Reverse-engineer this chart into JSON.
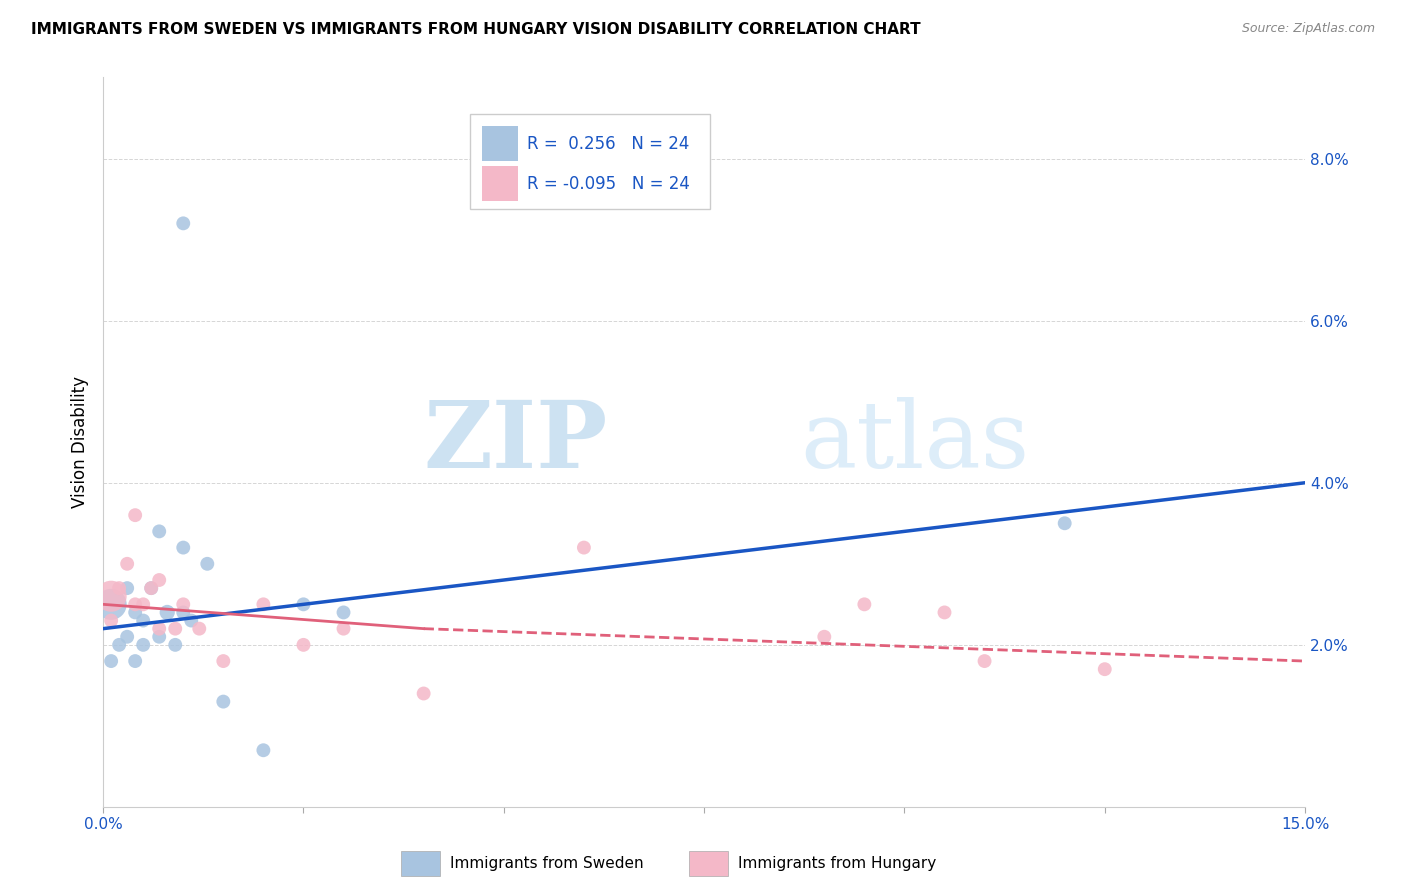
{
  "title": "IMMIGRANTS FROM SWEDEN VS IMMIGRANTS FROM HUNGARY VISION DISABILITY CORRELATION CHART",
  "source": "Source: ZipAtlas.com",
  "ylabel": "Vision Disability",
  "xlim": [
    0.0,
    0.15
  ],
  "ylim": [
    0.0,
    0.09
  ],
  "yticks": [
    0.02,
    0.04,
    0.06,
    0.08
  ],
  "ytick_labels": [
    "2.0%",
    "4.0%",
    "6.0%",
    "8.0%"
  ],
  "xticks": [
    0.0,
    0.025,
    0.05,
    0.075,
    0.1,
    0.125,
    0.15
  ],
  "xtick_labels": [
    "0.0%",
    "",
    "",
    "",
    "",
    "",
    "15.0%"
  ],
  "sweden_color": "#a8c4e0",
  "hungary_color": "#f4b8c8",
  "sweden_line_color": "#1a56c4",
  "hungary_line_color": "#e0607a",
  "R_sweden": 0.256,
  "R_hungary": -0.095,
  "N": 24,
  "watermark_zip": "ZIP",
  "watermark_atlas": "atlas",
  "sweden_x": [
    0.001,
    0.001,
    0.002,
    0.003,
    0.003,
    0.004,
    0.004,
    0.005,
    0.005,
    0.006,
    0.007,
    0.007,
    0.008,
    0.009,
    0.01,
    0.01,
    0.011,
    0.013,
    0.015,
    0.02,
    0.025,
    0.03,
    0.12,
    0.01
  ],
  "sweden_y": [
    0.025,
    0.018,
    0.02,
    0.027,
    0.021,
    0.024,
    0.018,
    0.023,
    0.02,
    0.027,
    0.021,
    0.034,
    0.024,
    0.02,
    0.024,
    0.032,
    0.023,
    0.03,
    0.013,
    0.007,
    0.025,
    0.024,
    0.035,
    0.072
  ],
  "sweden_sizes": [
    500,
    100,
    100,
    100,
    100,
    100,
    100,
    100,
    100,
    100,
    100,
    100,
    120,
    100,
    100,
    100,
    100,
    100,
    100,
    100,
    100,
    100,
    100,
    100
  ],
  "hungary_x": [
    0.001,
    0.001,
    0.002,
    0.003,
    0.004,
    0.004,
    0.005,
    0.006,
    0.007,
    0.007,
    0.009,
    0.01,
    0.012,
    0.015,
    0.02,
    0.025,
    0.03,
    0.04,
    0.06,
    0.09,
    0.095,
    0.105,
    0.11,
    0.125
  ],
  "hungary_y": [
    0.026,
    0.023,
    0.027,
    0.03,
    0.025,
    0.036,
    0.025,
    0.027,
    0.022,
    0.028,
    0.022,
    0.025,
    0.022,
    0.018,
    0.025,
    0.02,
    0.022,
    0.014,
    0.032,
    0.021,
    0.025,
    0.024,
    0.018,
    0.017
  ],
  "hungary_sizes": [
    500,
    100,
    100,
    100,
    100,
    100,
    100,
    100,
    100,
    100,
    100,
    100,
    100,
    100,
    100,
    100,
    100,
    100,
    100,
    100,
    100,
    100,
    100,
    100
  ]
}
